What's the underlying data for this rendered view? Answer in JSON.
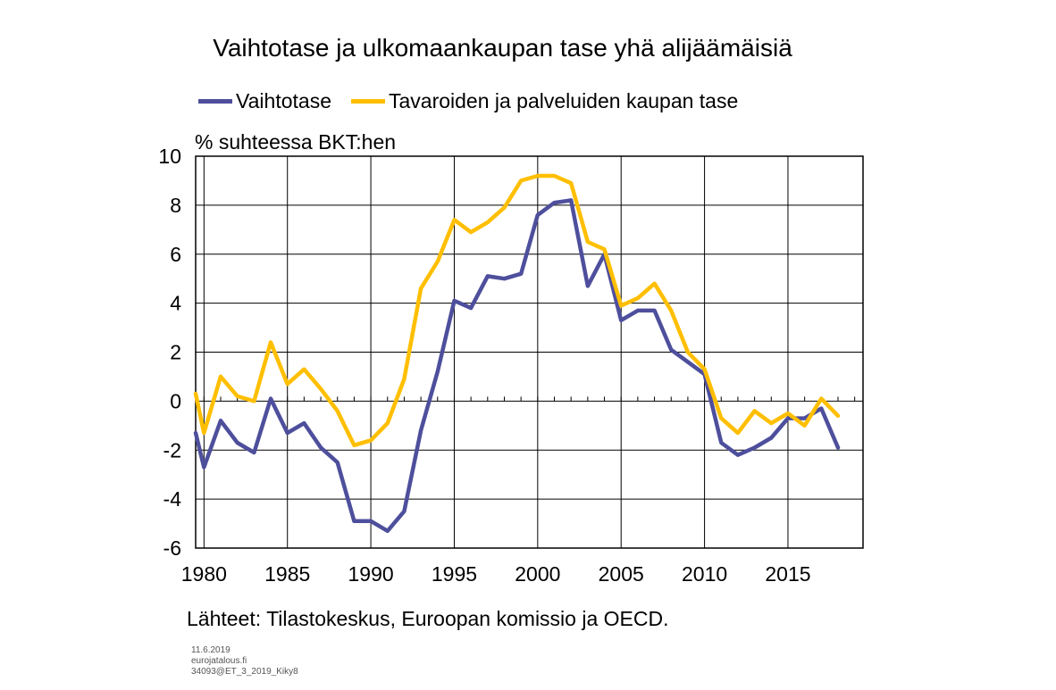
{
  "chart_data": {
    "type": "line",
    "title": "Vaihtotase ja ulkomaankaupan tase yhä alijäämäisiä",
    "ylabel": "% suhteessa BKT:hen",
    "xlabel": "",
    "ylim": [
      -6,
      10
    ],
    "xlim": [
      1979.5,
      2019.5
    ],
    "yticks": [
      "10",
      "8",
      "6",
      "4",
      "2",
      "0",
      "-2",
      "-4",
      "-6"
    ],
    "xticks": [
      "1980",
      "1985",
      "1990",
      "1995",
      "2000",
      "2005",
      "2010",
      "2015"
    ],
    "grid": true,
    "legend_position": "top",
    "x": [
      1979.5,
      1980,
      1981,
      1982,
      1983,
      1984,
      1985,
      1986,
      1987,
      1988,
      1989,
      1990,
      1991,
      1992,
      1993,
      1994,
      1995,
      1996,
      1997,
      1998,
      1999,
      2000,
      2001,
      2002,
      2003,
      2004,
      2005,
      2006,
      2007,
      2008,
      2009,
      2010,
      2011,
      2012,
      2013,
      2014,
      2015,
      2016,
      2017,
      2018
    ],
    "series": [
      {
        "name": "Vaihtotase",
        "color": "#4e4f9c",
        "values": [
          -1.3,
          -2.7,
          -0.8,
          -1.7,
          -2.1,
          0.1,
          -1.3,
          -0.9,
          -1.9,
          -2.5,
          -4.9,
          -4.9,
          -5.3,
          -4.5,
          -1.2,
          1.2,
          4.1,
          3.8,
          5.1,
          5.0,
          5.2,
          7.6,
          8.1,
          8.2,
          4.7,
          6.0,
          3.3,
          3.7,
          3.7,
          2.1,
          1.6,
          1.1,
          -1.7,
          -2.2,
          -1.9,
          -1.5,
          -0.7,
          -0.7,
          -0.3,
          -1.9
        ]
      },
      {
        "name": "Tavaroiden ja palveluiden kaupan tase",
        "color": "#ffbf00",
        "values": [
          0.3,
          -1.3,
          1.0,
          0.2,
          0.0,
          2.4,
          0.7,
          1.3,
          0.5,
          -0.4,
          -1.8,
          -1.6,
          -0.9,
          0.9,
          4.6,
          5.7,
          7.4,
          6.9,
          7.3,
          7.9,
          9.0,
          9.2,
          9.2,
          8.9,
          6.5,
          6.2,
          3.9,
          4.2,
          4.8,
          3.7,
          2.0,
          1.3,
          -0.7,
          -1.3,
          -0.4,
          -0.9,
          -0.5,
          -1.0,
          0.1,
          -0.6
        ]
      }
    ]
  },
  "source_text": "Lähteet: Tilastokeskus, Euroopan komissio ja OECD.",
  "footer": {
    "date": "11.6.2019",
    "site": "eurojatalous.fi",
    "code": "34093@ET_3_2019_Kiky8"
  }
}
